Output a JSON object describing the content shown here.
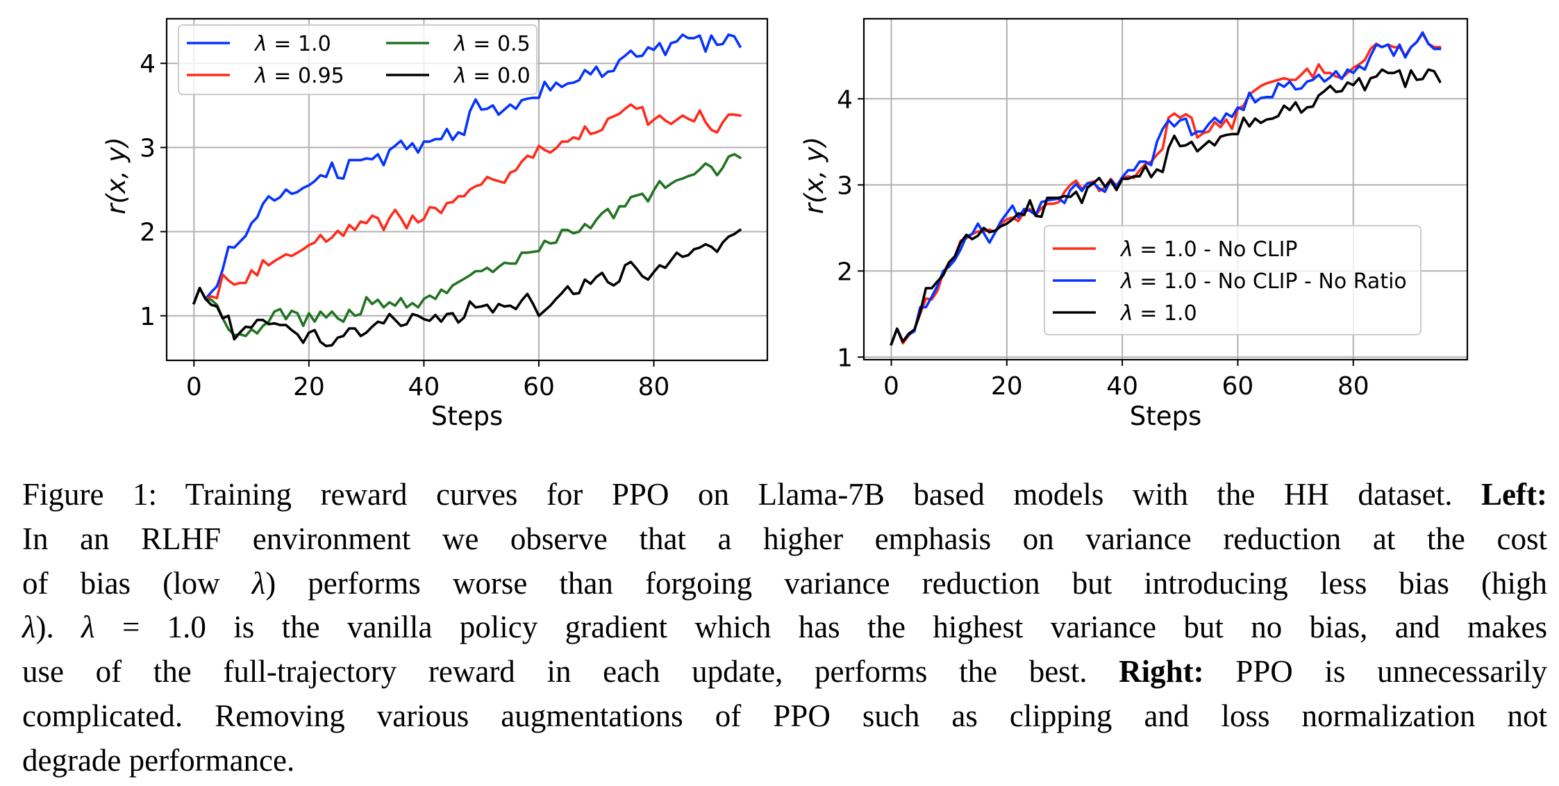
{
  "chart_data": [
    {
      "type": "line",
      "panel": "left",
      "title": "",
      "xlabel": "Steps",
      "ylabel": "r(x, y)",
      "xlim": [
        -4.75,
        99.75
      ],
      "ylim": [
        0.47,
        4.53
      ],
      "xticks": [
        0,
        20,
        40,
        60,
        80
      ],
      "yticks": [
        1,
        2,
        3,
        4
      ],
      "grid": true,
      "legend_position": "top-left",
      "legend_columns": 2,
      "x": "steps 0..95",
      "series": [
        {
          "name": "λ = 1.0",
          "label_prefix": "λ",
          "label_value": "1.0",
          "color": "#0433ff",
          "values": [
            1.15,
            1.33,
            1.2,
            1.28,
            1.35,
            1.55,
            1.82,
            1.81,
            1.88,
            1.95,
            2.1,
            2.17,
            2.33,
            2.42,
            2.37,
            2.41,
            2.5,
            2.45,
            2.47,
            2.52,
            2.55,
            2.6,
            2.67,
            2.65,
            2.82,
            2.64,
            2.63,
            2.85,
            2.85,
            2.85,
            2.87,
            2.86,
            2.92,
            2.79,
            2.97,
            3.02,
            3.08,
            2.98,
            3.05,
            2.94,
            3.07,
            3.07,
            3.1,
            3.1,
            3.22,
            3.09,
            3.18,
            3.15,
            3.43,
            3.57,
            3.45,
            3.46,
            3.5,
            3.39,
            3.45,
            3.51,
            3.46,
            3.56,
            3.58,
            3.59,
            3.59,
            3.78,
            3.68,
            3.77,
            3.72,
            3.76,
            3.77,
            3.8,
            3.92,
            3.87,
            3.96,
            3.84,
            3.9,
            3.91,
            4.04,
            4.09,
            4.15,
            4.08,
            4.09,
            4.19,
            4.16,
            4.24,
            4.1,
            4.24,
            4.26,
            4.34,
            4.3,
            4.3,
            4.33,
            4.14,
            4.33,
            4.22,
            4.23,
            4.34,
            4.32,
            4.2
          ]
        },
        {
          "name": "λ = 0.95",
          "label_prefix": "λ",
          "label_value": "0.95",
          "color": "#ff2a1a",
          "values": [
            1.15,
            1.33,
            1.2,
            1.23,
            1.21,
            1.49,
            1.42,
            1.37,
            1.39,
            1.39,
            1.54,
            1.48,
            1.66,
            1.6,
            1.65,
            1.69,
            1.73,
            1.71,
            1.75,
            1.79,
            1.84,
            1.87,
            1.96,
            1.88,
            1.93,
            2.01,
            1.95,
            2.08,
            2.02,
            2.12,
            2.1,
            2.19,
            2.16,
            2.02,
            2.16,
            2.26,
            2.16,
            2.04,
            2.19,
            2.11,
            2.15,
            2.29,
            2.28,
            2.22,
            2.34,
            2.35,
            2.42,
            2.42,
            2.5,
            2.54,
            2.56,
            2.65,
            2.62,
            2.6,
            2.58,
            2.7,
            2.73,
            2.83,
            2.9,
            2.88,
            3.02,
            2.97,
            2.94,
            2.99,
            3.07,
            3.07,
            3.12,
            3.1,
            3.25,
            3.16,
            3.18,
            3.21,
            3.34,
            3.37,
            3.4,
            3.46,
            3.51,
            3.46,
            3.48,
            3.27,
            3.33,
            3.38,
            3.32,
            3.28,
            3.33,
            3.38,
            3.34,
            3.31,
            3.44,
            3.3,
            3.21,
            3.18,
            3.3,
            3.39,
            3.39,
            3.38
          ]
        },
        {
          "name": "λ = 0.5",
          "label_prefix": "λ",
          "label_value": "0.5",
          "color": "#227322",
          "values": [
            1.15,
            1.33,
            1.2,
            1.19,
            1.13,
            0.97,
            0.84,
            0.77,
            0.78,
            0.76,
            0.84,
            0.79,
            0.88,
            0.93,
            1.05,
            1.08,
            0.96,
            1.06,
            1.03,
            0.88,
            1.03,
            0.93,
            1.05,
            0.98,
            1.05,
            0.97,
            0.93,
            1.07,
            1.0,
            1.02,
            1.22,
            1.14,
            1.19,
            1.1,
            1.16,
            1.12,
            1.21,
            1.1,
            1.15,
            1.1,
            1.2,
            1.24,
            1.2,
            1.31,
            1.27,
            1.36,
            1.4,
            1.44,
            1.48,
            1.53,
            1.53,
            1.57,
            1.52,
            1.58,
            1.63,
            1.62,
            1.62,
            1.75,
            1.75,
            1.76,
            1.77,
            1.89,
            1.86,
            1.87,
            2.02,
            2.02,
            1.98,
            2.0,
            2.09,
            2.04,
            2.14,
            2.22,
            2.27,
            2.16,
            2.3,
            2.3,
            2.41,
            2.43,
            2.45,
            2.36,
            2.49,
            2.6,
            2.52,
            2.57,
            2.61,
            2.63,
            2.66,
            2.68,
            2.74,
            2.81,
            2.77,
            2.67,
            2.76,
            2.89,
            2.92,
            2.88
          ]
        },
        {
          "name": "λ = 0.0",
          "label_prefix": "λ",
          "label_value": "0.0",
          "color": "#000000",
          "values": [
            1.15,
            1.33,
            1.2,
            1.13,
            1.11,
            0.97,
            1.0,
            0.72,
            0.8,
            0.87,
            0.86,
            0.95,
            0.95,
            0.9,
            0.91,
            0.89,
            0.89,
            0.83,
            0.78,
            0.68,
            0.8,
            0.83,
            0.69,
            0.64,
            0.65,
            0.74,
            0.76,
            0.85,
            0.85,
            0.76,
            0.8,
            0.87,
            0.93,
            0.91,
            1.02,
            0.95,
            0.88,
            0.9,
            1.02,
            1.0,
            0.96,
            0.94,
            1.01,
            0.93,
            1.02,
            1.03,
            0.92,
            0.98,
            1.17,
            1.1,
            1.11,
            1.13,
            1.04,
            1.14,
            1.11,
            1.12,
            1.08,
            1.18,
            1.26,
            1.14,
            1.0,
            1.06,
            1.12,
            1.2,
            1.27,
            1.35,
            1.26,
            1.27,
            1.43,
            1.38,
            1.46,
            1.51,
            1.4,
            1.36,
            1.41,
            1.6,
            1.64,
            1.56,
            1.47,
            1.43,
            1.52,
            1.6,
            1.57,
            1.66,
            1.75,
            1.7,
            1.72,
            1.79,
            1.81,
            1.85,
            1.82,
            1.76,
            1.87,
            1.94,
            1.97,
            2.02
          ]
        }
      ]
    },
    {
      "type": "line",
      "panel": "right",
      "title": "",
      "xlabel": "Steps",
      "ylabel": "r(x, y)",
      "xlim": [
        -4.75,
        99.75
      ],
      "ylim": [
        0.97,
        4.93
      ],
      "xticks": [
        0,
        20,
        40,
        60,
        80
      ],
      "yticks": [
        1,
        2,
        3,
        4
      ],
      "grid": true,
      "legend_position": "center-right",
      "legend_columns": 1,
      "x": "steps 0..95",
      "series": [
        {
          "name": "λ = 1.0 - No CLIP",
          "label_prefix": "λ",
          "label_value": "1.0 - No CLIP",
          "color": "#ff2a1a",
          "values": [
            1.15,
            1.33,
            1.16,
            1.25,
            1.32,
            1.5,
            1.68,
            1.67,
            1.77,
            1.98,
            2.1,
            2.17,
            2.35,
            2.38,
            2.43,
            2.46,
            2.46,
            2.48,
            2.45,
            2.55,
            2.6,
            2.62,
            2.58,
            2.68,
            2.72,
            2.65,
            2.73,
            2.78,
            2.78,
            2.8,
            2.92,
            3.0,
            3.05,
            2.95,
            3.02,
            3.04,
            2.93,
            2.97,
            3.07,
            2.99,
            3.08,
            3.1,
            3.08,
            3.17,
            3.24,
            3.27,
            3.35,
            3.42,
            3.78,
            3.83,
            3.78,
            3.82,
            3.78,
            3.55,
            3.6,
            3.62,
            3.73,
            3.67,
            3.76,
            3.65,
            3.88,
            3.92,
            4.05,
            4.1,
            4.15,
            4.18,
            4.2,
            4.22,
            4.24,
            4.22,
            4.22,
            4.28,
            4.35,
            4.25,
            4.4,
            4.3,
            4.3,
            4.26,
            4.24,
            4.3,
            4.36,
            4.4,
            4.45,
            4.58,
            4.64,
            4.6,
            4.63,
            4.6,
            4.6,
            4.5,
            4.6,
            4.66,
            4.76,
            4.64,
            4.6,
            4.6
          ]
        },
        {
          "name": "λ = 1.0 - No CLIP - No Ratio",
          "label_prefix": "λ",
          "label_value": "1.0 - No CLIP - No Ratio",
          "color": "#0433ff",
          "values": [
            1.15,
            1.33,
            1.18,
            1.26,
            1.3,
            1.58,
            1.58,
            1.7,
            1.83,
            2.0,
            2.05,
            2.13,
            2.25,
            2.4,
            2.43,
            2.55,
            2.44,
            2.33,
            2.45,
            2.58,
            2.67,
            2.76,
            2.62,
            2.72,
            2.7,
            2.65,
            2.8,
            2.82,
            2.83,
            2.84,
            2.79,
            2.94,
            3.01,
            2.93,
            3.02,
            3.02,
            2.96,
            2.92,
            3.06,
            2.98,
            3.09,
            3.17,
            3.17,
            3.27,
            3.27,
            3.23,
            3.5,
            3.65,
            3.75,
            3.68,
            3.75,
            3.77,
            3.58,
            3.62,
            3.62,
            3.71,
            3.78,
            3.72,
            3.83,
            3.79,
            3.9,
            3.87,
            4.07,
            3.96,
            4.01,
            4.02,
            4.02,
            4.18,
            4.14,
            4.2,
            4.11,
            4.12,
            4.2,
            4.22,
            4.28,
            4.2,
            4.25,
            4.32,
            4.23,
            4.34,
            4.3,
            4.38,
            4.34,
            4.5,
            4.63,
            4.6,
            4.63,
            4.5,
            4.63,
            4.48,
            4.6,
            4.66,
            4.77,
            4.64,
            4.58,
            4.58
          ]
        },
        {
          "name": "λ = 1.0",
          "label_prefix": "λ",
          "label_value": "1.0",
          "color": "#000000",
          "values": [
            1.15,
            1.33,
            1.18,
            1.27,
            1.32,
            1.52,
            1.8,
            1.8,
            1.88,
            1.95,
            2.1,
            2.17,
            2.33,
            2.42,
            2.37,
            2.41,
            2.5,
            2.45,
            2.47,
            2.52,
            2.55,
            2.6,
            2.67,
            2.65,
            2.82,
            2.64,
            2.63,
            2.85,
            2.85,
            2.85,
            2.87,
            2.86,
            2.92,
            2.79,
            2.97,
            3.02,
            3.08,
            2.98,
            3.05,
            2.94,
            3.07,
            3.07,
            3.1,
            3.1,
            3.22,
            3.09,
            3.18,
            3.15,
            3.43,
            3.57,
            3.45,
            3.46,
            3.5,
            3.39,
            3.45,
            3.51,
            3.46,
            3.56,
            3.58,
            3.59,
            3.59,
            3.78,
            3.68,
            3.77,
            3.72,
            3.76,
            3.77,
            3.8,
            3.92,
            3.87,
            3.96,
            3.84,
            3.9,
            3.91,
            4.04,
            4.09,
            4.15,
            4.08,
            4.09,
            4.19,
            4.16,
            4.24,
            4.1,
            4.24,
            4.26,
            4.34,
            4.3,
            4.3,
            4.33,
            4.14,
            4.33,
            4.22,
            4.23,
            4.34,
            4.32,
            4.2
          ]
        }
      ]
    }
  ],
  "caption": {
    "lines": [
      [
        {
          "t": "Figure 1: Training reward curves for PPO on Llama-7B based models with the HH dataset. "
        },
        {
          "t": "Left:",
          "b": true
        }
      ],
      [
        {
          "t": "In an RLHF environment we observe that a higher emphasis on variance reduction at the cost"
        }
      ],
      [
        {
          "t": "of bias (low "
        },
        {
          "t": "λ",
          "i": true
        },
        {
          "t": ") performs worse than forgoing variance reduction but introducing less bias (high"
        }
      ],
      [
        {
          "t": "λ",
          "i": true
        },
        {
          "t": ").  "
        },
        {
          "t": "λ",
          "i": true
        },
        {
          "t": " = 1.0 is the vanilla policy gradient which has the highest variance but no bias, and makes"
        }
      ],
      [
        {
          "t": "use of the full-trajectory reward in each update, performs the best. "
        },
        {
          "t": "Right:",
          "b": true
        },
        {
          "t": " PPO is unnecessarily"
        }
      ],
      [
        {
          "t": "complicated. Removing various augmentations of PPO such as clipping and loss normalization not"
        }
      ],
      [
        {
          "t": "degrade performance."
        }
      ]
    ]
  }
}
